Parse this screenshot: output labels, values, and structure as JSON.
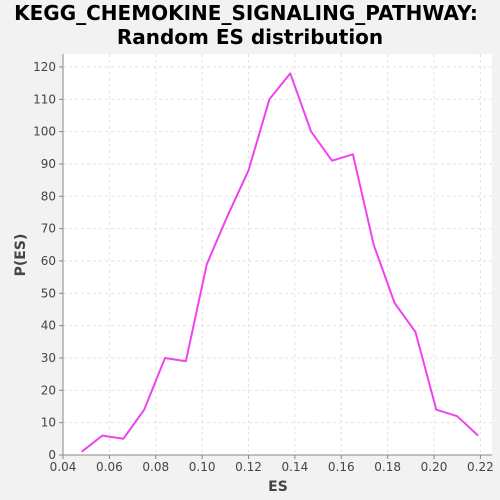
{
  "chart_data": {
    "type": "line",
    "title_line1": "KEGG_CHEMOKINE_SIGNALING_PATHWAY:",
    "title_line2": "Random ES distribution",
    "xlabel": "ES",
    "ylabel": "P(ES)",
    "xlim": [
      0.04,
      0.225
    ],
    "ylim": [
      0,
      124
    ],
    "xticks": [
      0.04,
      0.06,
      0.08,
      0.1,
      0.12,
      0.14,
      0.16,
      0.18,
      0.2,
      0.22
    ],
    "xtick_labels": [
      "0.04",
      "0.06",
      "0.08",
      "0.10",
      "0.12",
      "0.14",
      "0.16",
      "0.18",
      "0.20",
      "0.22"
    ],
    "yticks": [
      0,
      10,
      20,
      30,
      40,
      50,
      60,
      70,
      80,
      90,
      100,
      110,
      120
    ],
    "ytick_labels": [
      "0",
      "10",
      "20",
      "30",
      "40",
      "50",
      "60",
      "70",
      "80",
      "90",
      "100",
      "110",
      "120"
    ],
    "grid": true,
    "line_color": "#ee44ee",
    "series": [
      {
        "x": [
          0.048,
          0.057,
          0.066,
          0.075,
          0.084,
          0.093,
          0.102,
          0.111,
          0.12,
          0.129,
          0.138,
          0.147,
          0.156,
          0.165,
          0.174,
          0.183,
          0.192,
          0.201,
          0.21,
          0.219
        ],
        "y": [
          1,
          6,
          5,
          14,
          30,
          29,
          59,
          74,
          88,
          110,
          118,
          100,
          91,
          93,
          65,
          47,
          38,
          14,
          12,
          6
        ]
      }
    ]
  }
}
